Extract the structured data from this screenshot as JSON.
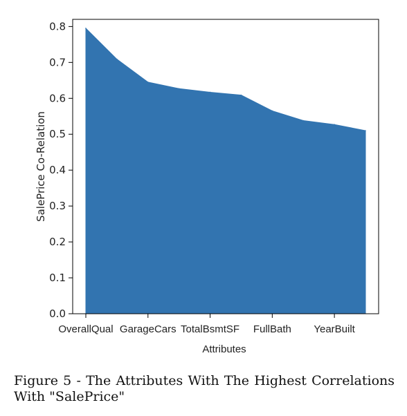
{
  "chart_data": {
    "type": "area",
    "categories": [
      "OverallQual",
      "",
      "GarageCars",
      "",
      "TotalBsmtSF",
      "",
      "FullBath",
      "",
      "YearBuilt",
      ""
    ],
    "x_tick_labels": [
      "OverallQual",
      "GarageCars",
      "TotalBsmtSF",
      "FullBath",
      "YearBuilt"
    ],
    "values": [
      0.795,
      0.709,
      0.645,
      0.627,
      0.617,
      0.609,
      0.565,
      0.538,
      0.527,
      0.51
    ],
    "xlabel": "Attributes",
    "ylabel": "SalePrice Co-Relation",
    "ylim": [
      0.0,
      0.82
    ],
    "yticks": [
      "0.0",
      "0.1",
      "0.2",
      "0.3",
      "0.4",
      "0.5",
      "0.6",
      "0.7",
      "0.8"
    ],
    "fill_color": "#3274b0",
    "grid": false
  },
  "caption": "Figure 5 - The Attributes With The Highest Correlations With \"SalePrice\""
}
